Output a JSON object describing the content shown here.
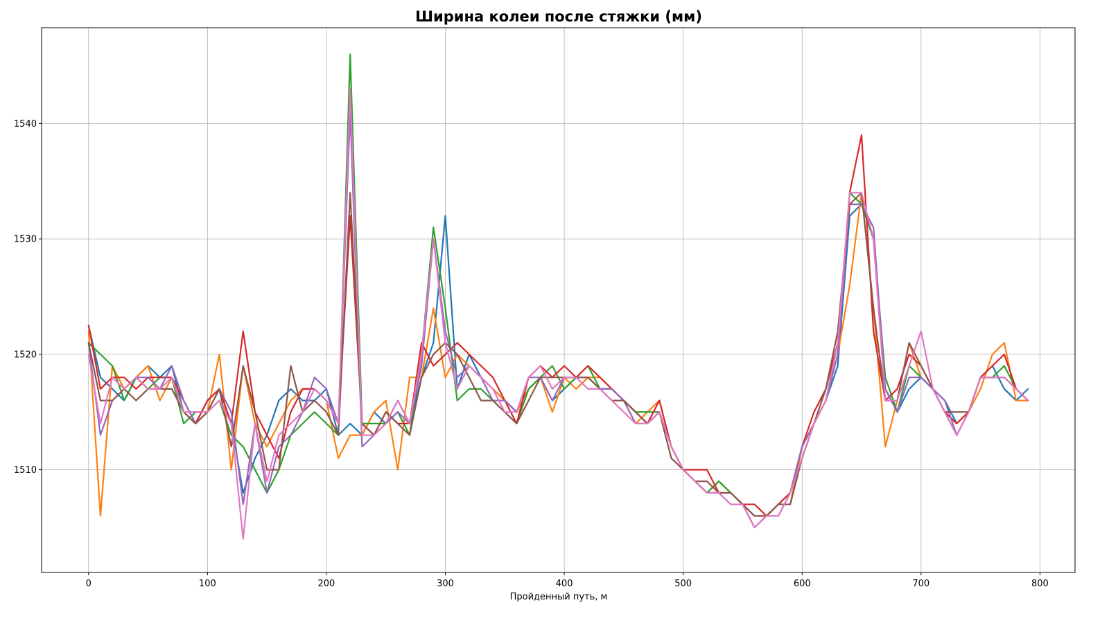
{
  "chart_data": {
    "type": "line",
    "title": "Ширина колеи после стяжки (мм)",
    "xlabel": "Пройденный путь, м",
    "ylabel": "",
    "xlim": [
      -39.5,
      829.5
    ],
    "ylim": [
      1501.1,
      1548.3
    ],
    "xticks": [
      0,
      100,
      200,
      300,
      400,
      500,
      600,
      700,
      800
    ],
    "yticks": [
      1510,
      1520,
      1530,
      1540
    ],
    "grid": true,
    "legend": "none",
    "x_start": 0,
    "x_step": 10,
    "series": [
      {
        "color": "#1f77b4",
        "values": [
          1522.5,
          1518,
          1517,
          1516,
          1518,
          1519,
          1518,
          1519,
          1515,
          1514,
          1516,
          1517,
          1514,
          1508,
          1511,
          1513,
          1516,
          1517,
          1516,
          1516,
          1517,
          1513,
          1514,
          1513,
          1515,
          1514,
          1516,
          1514,
          1518,
          1521,
          1532,
          1517,
          1520,
          1518,
          1517,
          1516,
          1515,
          1517,
          1518,
          1516,
          1517,
          1518,
          1518,
          1517,
          1517,
          1516,
          1515,
          1514,
          1515,
          1512,
          1510,
          1509,
          1508,
          1509,
          1508,
          1507,
          1506,
          1506,
          1507,
          1508,
          1512,
          1514,
          1516,
          1519,
          1532,
          1533,
          1530,
          1517,
          1515,
          1517,
          1518,
          1517,
          1516,
          1514,
          1515,
          1518,
          1519,
          1517,
          1516,
          1517
        ]
      },
      {
        "color": "#ff7f0e",
        "values": [
          1522,
          1506,
          1519,
          1517,
          1518,
          1519,
          1516,
          1518,
          1515,
          1514,
          1515,
          1520,
          1510,
          1519,
          1514,
          1512,
          1514,
          1516,
          1517,
          1517,
          1516,
          1511,
          1513,
          1513,
          1515,
          1516,
          1510,
          1518,
          1518,
          1524,
          1518,
          1520,
          1519,
          1518,
          1517,
          1516,
          1515,
          1517,
          1518,
          1515,
          1518,
          1517,
          1518,
          1518,
          1517,
          1516,
          1514,
          1515,
          1516,
          1512,
          1510,
          1509,
          1508,
          1509,
          1508,
          1507,
          1506,
          1506,
          1507,
          1507,
          1512,
          1514,
          1516,
          1520,
          1526,
          1534,
          1524,
          1512,
          1516,
          1521,
          1518,
          1517,
          1515,
          1514,
          1515,
          1517,
          1520,
          1521,
          1516,
          1516
        ]
      },
      {
        "color": "#2ca02c",
        "values": [
          1521,
          1520,
          1519,
          1516,
          1518,
          1517,
          1518,
          1518,
          1514,
          1515,
          1515,
          1516,
          1513,
          1512,
          1510,
          1508,
          1510,
          1513,
          1514,
          1515,
          1514,
          1513,
          1546,
          1514,
          1514,
          1514,
          1515,
          1513,
          1520,
          1531,
          1524,
          1516,
          1517,
          1517,
          1516,
          1515,
          1514,
          1517,
          1518,
          1519,
          1517,
          1518,
          1519,
          1517,
          1517,
          1516,
          1515,
          1515,
          1515,
          1512,
          1510,
          1509,
          1508,
          1509,
          1508,
          1507,
          1505,
          1506,
          1507,
          1508,
          1511,
          1514,
          1516,
          1521,
          1534,
          1533,
          1530,
          1518,
          1515,
          1519,
          1518,
          1517,
          1515,
          1513,
          1515,
          1518,
          1518,
          1519,
          1517,
          1516
        ]
      },
      {
        "color": "#d62728",
        "values": [
          1522.5,
          1517,
          1518,
          1518,
          1517,
          1518,
          1518,
          1518,
          1516,
          1514,
          1516,
          1517,
          1514,
          1522,
          1515,
          1513,
          1511,
          1515,
          1517,
          1517,
          1516,
          1514,
          1532,
          1514,
          1513,
          1515,
          1514,
          1514,
          1521,
          1519,
          1520,
          1521,
          1520,
          1519,
          1518,
          1516,
          1514,
          1518,
          1519,
          1518,
          1519,
          1518,
          1519,
          1518,
          1517,
          1516,
          1515,
          1514,
          1516,
          1512,
          1510,
          1510,
          1510,
          1508,
          1508,
          1507,
          1507,
          1506,
          1507,
          1508,
          1512,
          1515,
          1517,
          1521,
          1534,
          1539,
          1522,
          1516,
          1517,
          1520,
          1519,
          1517,
          1515,
          1514,
          1515,
          1518,
          1519,
          1520,
          1517,
          1516
        ]
      },
      {
        "color": "#9467bd",
        "values": [
          1521,
          1513,
          1516,
          1517,
          1518,
          1518,
          1517,
          1519,
          1516,
          1514,
          1515,
          1517,
          1515,
          1507,
          1514,
          1508,
          1512,
          1513,
          1515,
          1518,
          1517,
          1514,
          1541,
          1512,
          1513,
          1514,
          1515,
          1514,
          1519,
          1530,
          1522,
          1518,
          1519,
          1518,
          1516,
          1516,
          1515,
          1518,
          1518,
          1516,
          1518,
          1518,
          1518,
          1517,
          1517,
          1516,
          1514,
          1514,
          1515,
          1512,
          1510,
          1509,
          1508,
          1508,
          1507,
          1507,
          1505,
          1506,
          1506,
          1508,
          1512,
          1514,
          1516,
          1520,
          1533,
          1533,
          1531,
          1517,
          1515,
          1518,
          1518,
          1517,
          1516,
          1513,
          1515,
          1518,
          1518,
          1518,
          1517,
          1516
        ]
      },
      {
        "color": "#8c564b",
        "values": [
          1521,
          1516,
          1516,
          1517,
          1516,
          1517,
          1517,
          1517,
          1515,
          1514,
          1515,
          1517,
          1512,
          1519,
          1515,
          1510,
          1510,
          1519,
          1515,
          1516,
          1515,
          1513,
          1534,
          1514,
          1513,
          1515,
          1514,
          1513,
          1518,
          1520,
          1521,
          1520,
          1518,
          1516,
          1516,
          1515,
          1514,
          1516,
          1518,
          1518,
          1518,
          1518,
          1518,
          1517,
          1516,
          1516,
          1515,
          1514,
          1515,
          1511,
          1510,
          1509,
          1509,
          1508,
          1508,
          1507,
          1506,
          1506,
          1507,
          1507,
          1511,
          1514,
          1517,
          1522,
          1533,
          1534,
          1524,
          1516,
          1516,
          1521,
          1519,
          1517,
          1515,
          1515,
          1515,
          1518,
          1518,
          1518,
          1517,
          1516
        ]
      },
      {
        "color": "#e377c2",
        "values": [
          1520,
          1514,
          1518,
          1517,
          1518,
          1517,
          1517,
          1518,
          1515,
          1515,
          1515,
          1516,
          1514,
          1504,
          1514,
          1509,
          1513,
          1514,
          1515,
          1517,
          1516,
          1514,
          1543,
          1513,
          1513,
          1514,
          1516,
          1514,
          1520,
          1530,
          1521,
          1517,
          1519,
          1518,
          1517,
          1515,
          1515,
          1518,
          1519,
          1517,
          1518,
          1518,
          1517,
          1517,
          1516,
          1515,
          1514,
          1514,
          1515,
          1512,
          1510,
          1509,
          1508,
          1508,
          1507,
          1507,
          1505,
          1506,
          1506,
          1508,
          1511,
          1514,
          1516,
          1521,
          1534,
          1534,
          1530,
          1516,
          1516,
          1519,
          1522,
          1517,
          1515,
          1513,
          1515,
          1518,
          1518,
          1518,
          1517,
          1516
        ]
      }
    ]
  }
}
